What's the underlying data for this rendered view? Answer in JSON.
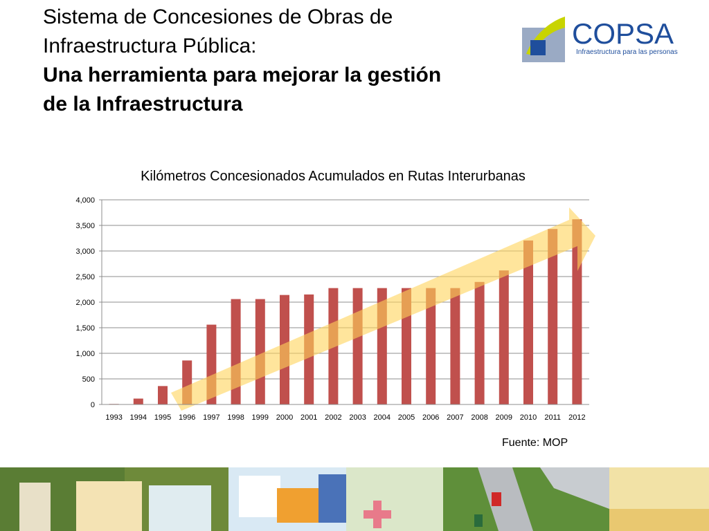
{
  "slide": {
    "title_line1": "Sistema de Concesiones de Obras de",
    "title_line2": "Infraestructura Pública:",
    "subtitle_line1": "Una herramienta para mejorar la gestión",
    "subtitle_line2": "de la Infraestructura",
    "source": "Fuente: MOP"
  },
  "logo": {
    "name": "COPSA",
    "tagline": "Infraestructura para las personas",
    "color": "#1f4e9c",
    "accent": "#c8d400"
  },
  "chart_data": {
    "type": "bar",
    "title": "Kilómetros Concesionados Acumulados en Rutas Interurbanas",
    "xlabel": "",
    "ylabel": "",
    "categories": [
      "1993",
      "1994",
      "1995",
      "1996",
      "1997",
      "1998",
      "1999",
      "2000",
      "2001",
      "2002",
      "2003",
      "2004",
      "2005",
      "2006",
      "2007",
      "2008",
      "2009",
      "2010",
      "2011",
      "2012"
    ],
    "values": [
      10,
      115,
      360,
      860,
      1560,
      2060,
      2060,
      2140,
      2150,
      2275,
      2275,
      2275,
      2275,
      2275,
      2275,
      2395,
      2620,
      3205,
      3430,
      3620
    ],
    "ylim": [
      0,
      4000
    ],
    "yticks": [
      0,
      500,
      1000,
      1500,
      2000,
      2500,
      3000,
      3500,
      4000
    ],
    "ytick_labels": [
      "0",
      "500",
      "1,000",
      "1,500",
      "2,000",
      "2,500",
      "3,000",
      "3,500",
      "4,000"
    ],
    "grid": true,
    "bar_color": "#c0504d",
    "trend_arrow_color": "#ffd45a",
    "legend": "none"
  }
}
